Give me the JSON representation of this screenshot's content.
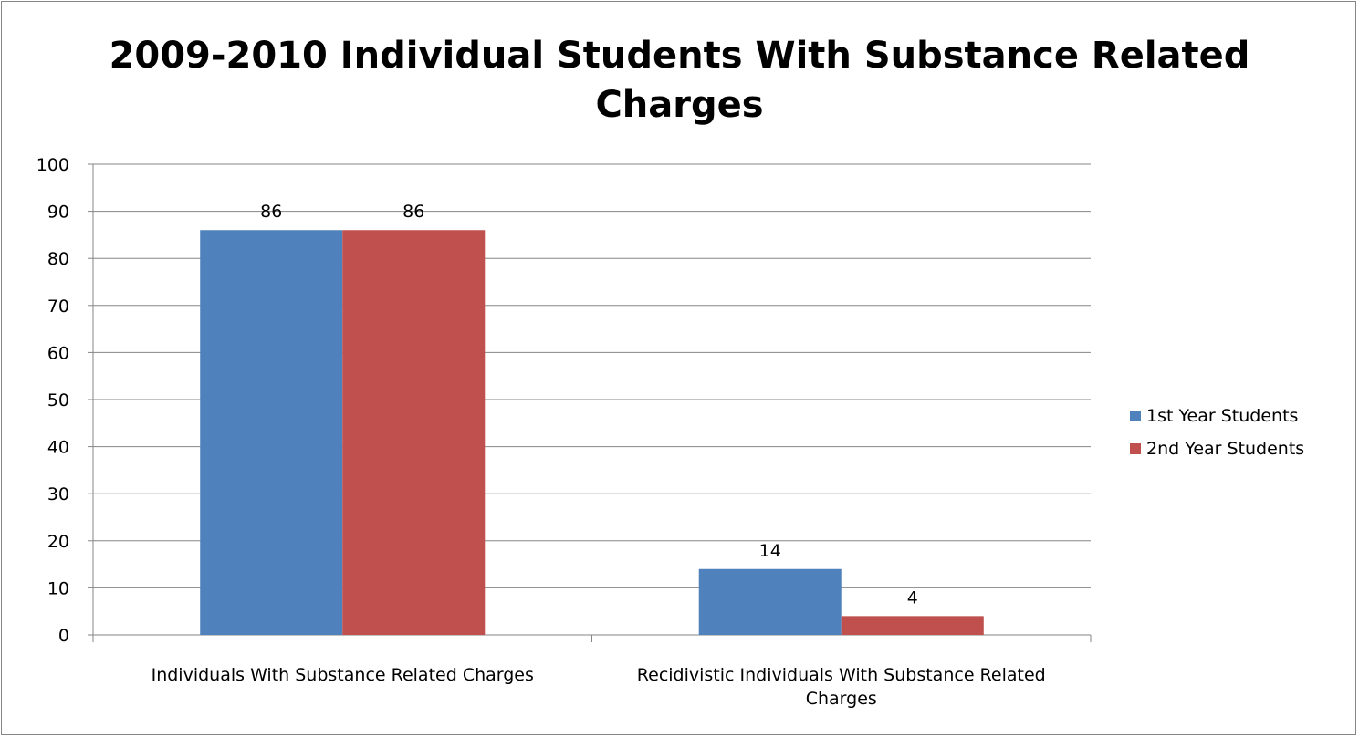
{
  "chart_data": {
    "type": "bar",
    "title_lines": [
      "2009-2010 Individual Students With Substance Related",
      "Charges"
    ],
    "categories": [
      [
        "Individuals With Substance Related Charges"
      ],
      [
        "Recidivistic Individuals With Substance Related",
        "Charges"
      ]
    ],
    "series": [
      {
        "name": "1st Year Students",
        "color": "#4F81BD",
        "values": [
          86,
          14
        ]
      },
      {
        "name": "2nd Year Students",
        "color": "#C0504D",
        "values": [
          86,
          4
        ]
      }
    ],
    "ylim": [
      0,
      100
    ],
    "yticks": [
      0,
      10,
      20,
      30,
      40,
      50,
      60,
      70,
      80,
      90,
      100
    ],
    "grid": true,
    "legend_position": "right",
    "xlabel": "",
    "ylabel": ""
  }
}
